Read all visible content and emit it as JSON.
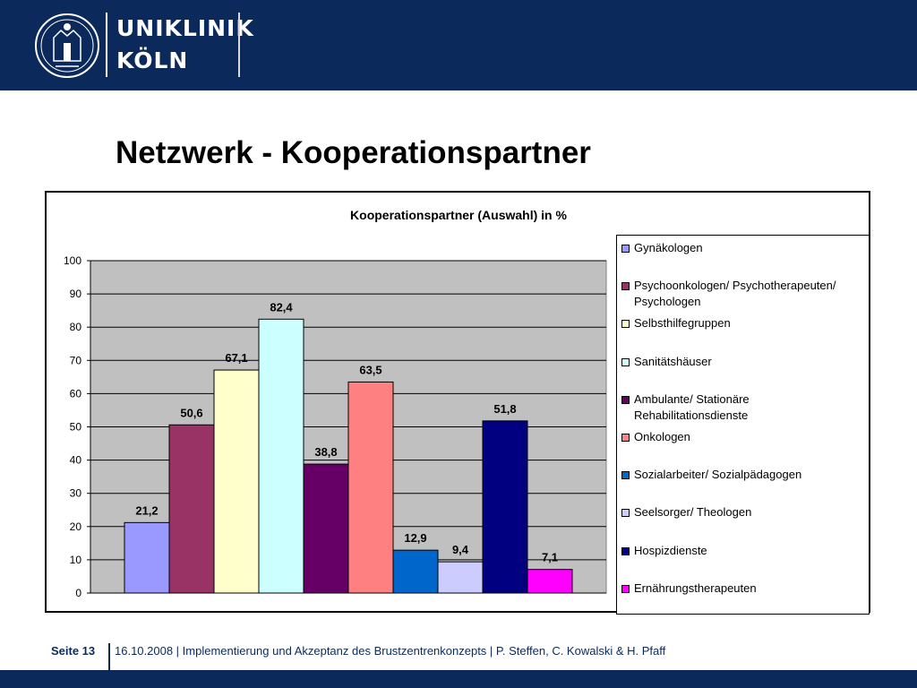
{
  "header": {
    "brand_line1": "UNIKLINIK",
    "brand_line2": "KÖLN",
    "logo_icon": "university-seal-icon",
    "background_color": "#0b2a5b"
  },
  "slide": {
    "title": "Netzwerk - Kooperationspartner"
  },
  "chart_data": {
    "type": "bar",
    "title": "Kooperationspartner (Auswahl) in %",
    "xlabel": "",
    "ylabel": "",
    "ylim": [
      0,
      100
    ],
    "yticks": [
      0,
      10,
      20,
      30,
      40,
      50,
      60,
      70,
      80,
      90,
      100
    ],
    "grid": true,
    "legend_position": "right",
    "plot_background": "#c0c0c0",
    "series": [
      {
        "name": "Gynäkologen",
        "value": 21.2,
        "label": "21,2",
        "color": "#9999ff"
      },
      {
        "name": "Psychoonkologen/ Psychotherapeuten/ Psychologen",
        "value": 50.6,
        "label": "50,6",
        "color": "#993366"
      },
      {
        "name": "Selbsthilfegruppen",
        "value": 67.1,
        "label": "67,1",
        "color": "#ffffcc"
      },
      {
        "name": "Sanitätshäuser",
        "value": 82.4,
        "label": "82,4",
        "color": "#ccffff"
      },
      {
        "name": "Ambulante/ Stationäre Rehabilitationsdienste",
        "value": 38.8,
        "label": "38,8",
        "color": "#660066"
      },
      {
        "name": "Onkologen",
        "value": 63.5,
        "label": "63,5",
        "color": "#ff8080"
      },
      {
        "name": "Sozialarbeiter/ Sozialpädagogen",
        "value": 12.9,
        "label": "12,9",
        "color": "#0066cc"
      },
      {
        "name": "Seelsorger/ Theologen",
        "value": 9.4,
        "label": "9,4",
        "color": "#ccccff"
      },
      {
        "name": "Hospizdienste",
        "value": 51.8,
        "label": "51,8",
        "color": "#000080"
      },
      {
        "name": "Ernährungstherapeuten",
        "value": 7.1,
        "label": "7,1",
        "color": "#ff00ff"
      }
    ]
  },
  "footer": {
    "page_label": "Seite 13",
    "text": "16.10.2008 | Implementierung und Akzeptanz des Brustzentrenkonzepts | P. Steffen, C. Kowalski & H. Pfaff"
  }
}
